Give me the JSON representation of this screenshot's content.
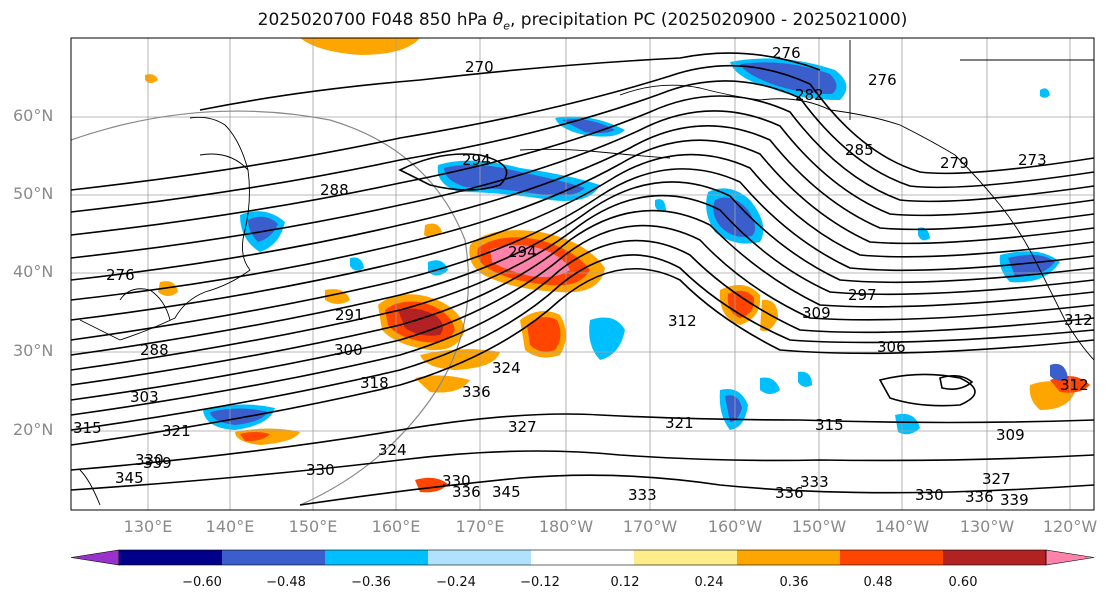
{
  "title": {
    "prefix": "2025020700 F048 850 hPa ",
    "theta": "θ",
    "theta_sub": "e",
    "suffix": ", precipitation PC (2025020900 - 2025021000)"
  },
  "map": {
    "lat_labels": [
      "60°N",
      "50°N",
      "40°N",
      "30°N",
      "20°N"
    ],
    "lon_labels": [
      "130°E",
      "140°E",
      "150°E",
      "160°E",
      "170°E",
      "180°W",
      "170°W",
      "160°W",
      "150°W",
      "140°W",
      "130°W",
      "120°W"
    ],
    "contour_labels": [
      "270",
      "276",
      "282",
      "276",
      "285",
      "273",
      "279",
      "294",
      "288",
      "294",
      "276",
      "291",
      "288",
      "300",
      "297",
      "309",
      "306",
      "312",
      "312",
      "303",
      "318",
      "324",
      "336",
      "315",
      "321",
      "327",
      "321",
      "315",
      "309",
      "312",
      "330",
      "339",
      "345",
      "330",
      "336",
      "345",
      "333",
      "336",
      "333",
      "330",
      "336",
      "327",
      "339",
      "324",
      "330"
    ],
    "land_color": "#ffffff",
    "contour_color": "#000000",
    "grid_color": "#a0a0a0"
  },
  "colorbar": {
    "colors": [
      "#9932cc",
      "#00008b",
      "#3a5fcd",
      "#00bfff",
      "#b0e2ff",
      "#ffffff",
      "#ffec8b",
      "#ffa500",
      "#ff4500",
      "#b22222",
      "#ff82ab"
    ],
    "ticks": [
      "−0.60",
      "−0.48",
      "−0.36",
      "−0.24",
      "−0.12",
      "0.12",
      "0.24",
      "0.36",
      "0.48",
      "0.60"
    ]
  }
}
